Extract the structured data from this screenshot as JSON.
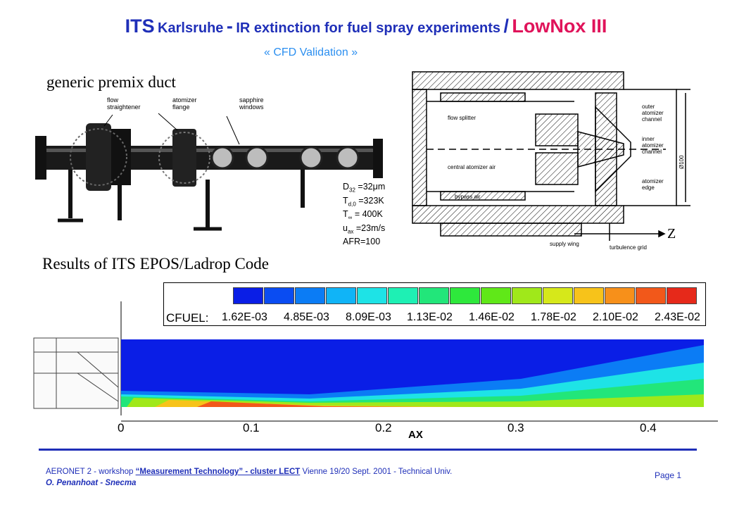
{
  "title": {
    "its": "ITS",
    "karlsruhe": "Karlsruhe",
    "dash": "-",
    "main": "IR extinction for fuel spray experiments",
    "slash": "/",
    "lownox": "LowNox III"
  },
  "subtitle": "« CFD Validation »",
  "label_duct": "generic premix duct",
  "label_results": "Results of ITS EPOS/Ladrop Code",
  "photo_labels": {
    "flow_straightener": "flow\nstraightener",
    "atomizer_flange": "atomizer\nflange",
    "sapphire_windows": "sapphire\nwindows"
  },
  "params": {
    "d32": "D",
    "d32_sub": "32",
    "d32_val": " =32μm",
    "td": "T",
    "td_sub": "d,0",
    "td_val": " =323K",
    "tinf": "T",
    "tinf_sub": "∞",
    "tinf_val": " = 400K",
    "uax": "u",
    "uax_sub": "ax",
    "uax_val": " =23m/s",
    "afr": "AFR=100"
  },
  "drawing_labels": {
    "flow_splitter": "flow splitter",
    "central_air": "central atomizer air",
    "bypass_air": "bypass air",
    "supply_wing": "supply wing",
    "turbulence_grid": "turbulence grid",
    "outer_channel": "outer\natomizer\nchannel",
    "inner_channel": "inner\natomizer\nchannel",
    "atomizer_edge": "atomizer\nedge",
    "diameter": "Ø100",
    "z": "Z"
  },
  "legend": {
    "label": "CFUEL:",
    "values": [
      "1.62E-03",
      "4.85E-03",
      "8.09E-03",
      "1.13E-02",
      "1.46E-02",
      "1.78E-02",
      "2.10E-02",
      "2.43E-02"
    ],
    "colors": [
      "#0a1ee6",
      "#0a4cf2",
      "#0b7cf5",
      "#10b4f7",
      "#1ee3e6",
      "#1ef0b4",
      "#22e67a",
      "#2ee83c",
      "#60e818",
      "#a0e81a",
      "#d6e81a",
      "#f7c31a",
      "#f7901a",
      "#f2581a",
      "#e6291a"
    ]
  },
  "chart_data": {
    "type": "heatmap",
    "xlabel": "AX",
    "ticks": [
      "0",
      "0.1",
      "0.2",
      "0.3",
      "0.4"
    ],
    "tick_values": [
      0,
      0.1,
      0.2,
      0.3,
      0.4
    ],
    "xlim": [
      0,
      0.45
    ],
    "variable": "CFUEL"
  },
  "footer": {
    "prefix": "AERONET 2  - workshop ",
    "link": "“Measurement Technology”  - cluster  LECT",
    "suffix": "  Vienne 19/20 Sept. 2001 - Technical Univ.",
    "author": "O. Penanhoat - Snecma",
    "page": "Page 1"
  }
}
